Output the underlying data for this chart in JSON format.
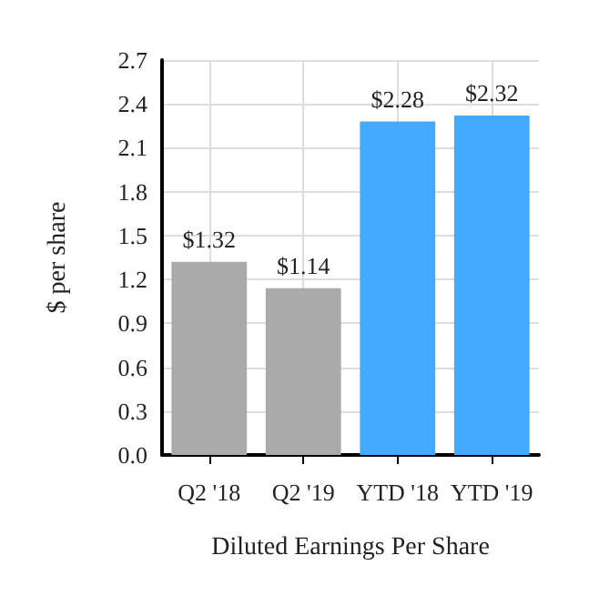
{
  "chart_data": {
    "type": "bar",
    "xlabel": "Diluted Earnings Per Share",
    "ylabel": "$ per share",
    "categories": [
      "Q2 '18",
      "Q2 '19",
      "YTD '18",
      "YTD '19"
    ],
    "values": [
      1.32,
      1.14,
      2.28,
      2.32
    ],
    "colors": [
      "#aaaaaa",
      "#aaaaaa",
      "#42aaff",
      "#42aaff"
    ],
    "value_labels": [
      "$1.32",
      "$1.14",
      "$2.28",
      "$2.32"
    ],
    "ylim": [
      0,
      2.7
    ],
    "yticks": [
      {
        "value": 0,
        "label": "0.0"
      },
      {
        "value": 0.3,
        "label": "0.3"
      },
      {
        "value": 0.6,
        "label": "0.6"
      },
      {
        "value": 0.9,
        "label": "0.9"
      },
      {
        "value": 1.2,
        "label": "1.2"
      },
      {
        "value": 1.5,
        "label": "1.5"
      },
      {
        "value": 1.8,
        "label": "1.8"
      },
      {
        "value": 2.1,
        "label": "2.1"
      },
      {
        "value": 2.4,
        "label": "2.4"
      },
      {
        "value": 2.7,
        "label": "2.7"
      }
    ],
    "grid": true
  }
}
